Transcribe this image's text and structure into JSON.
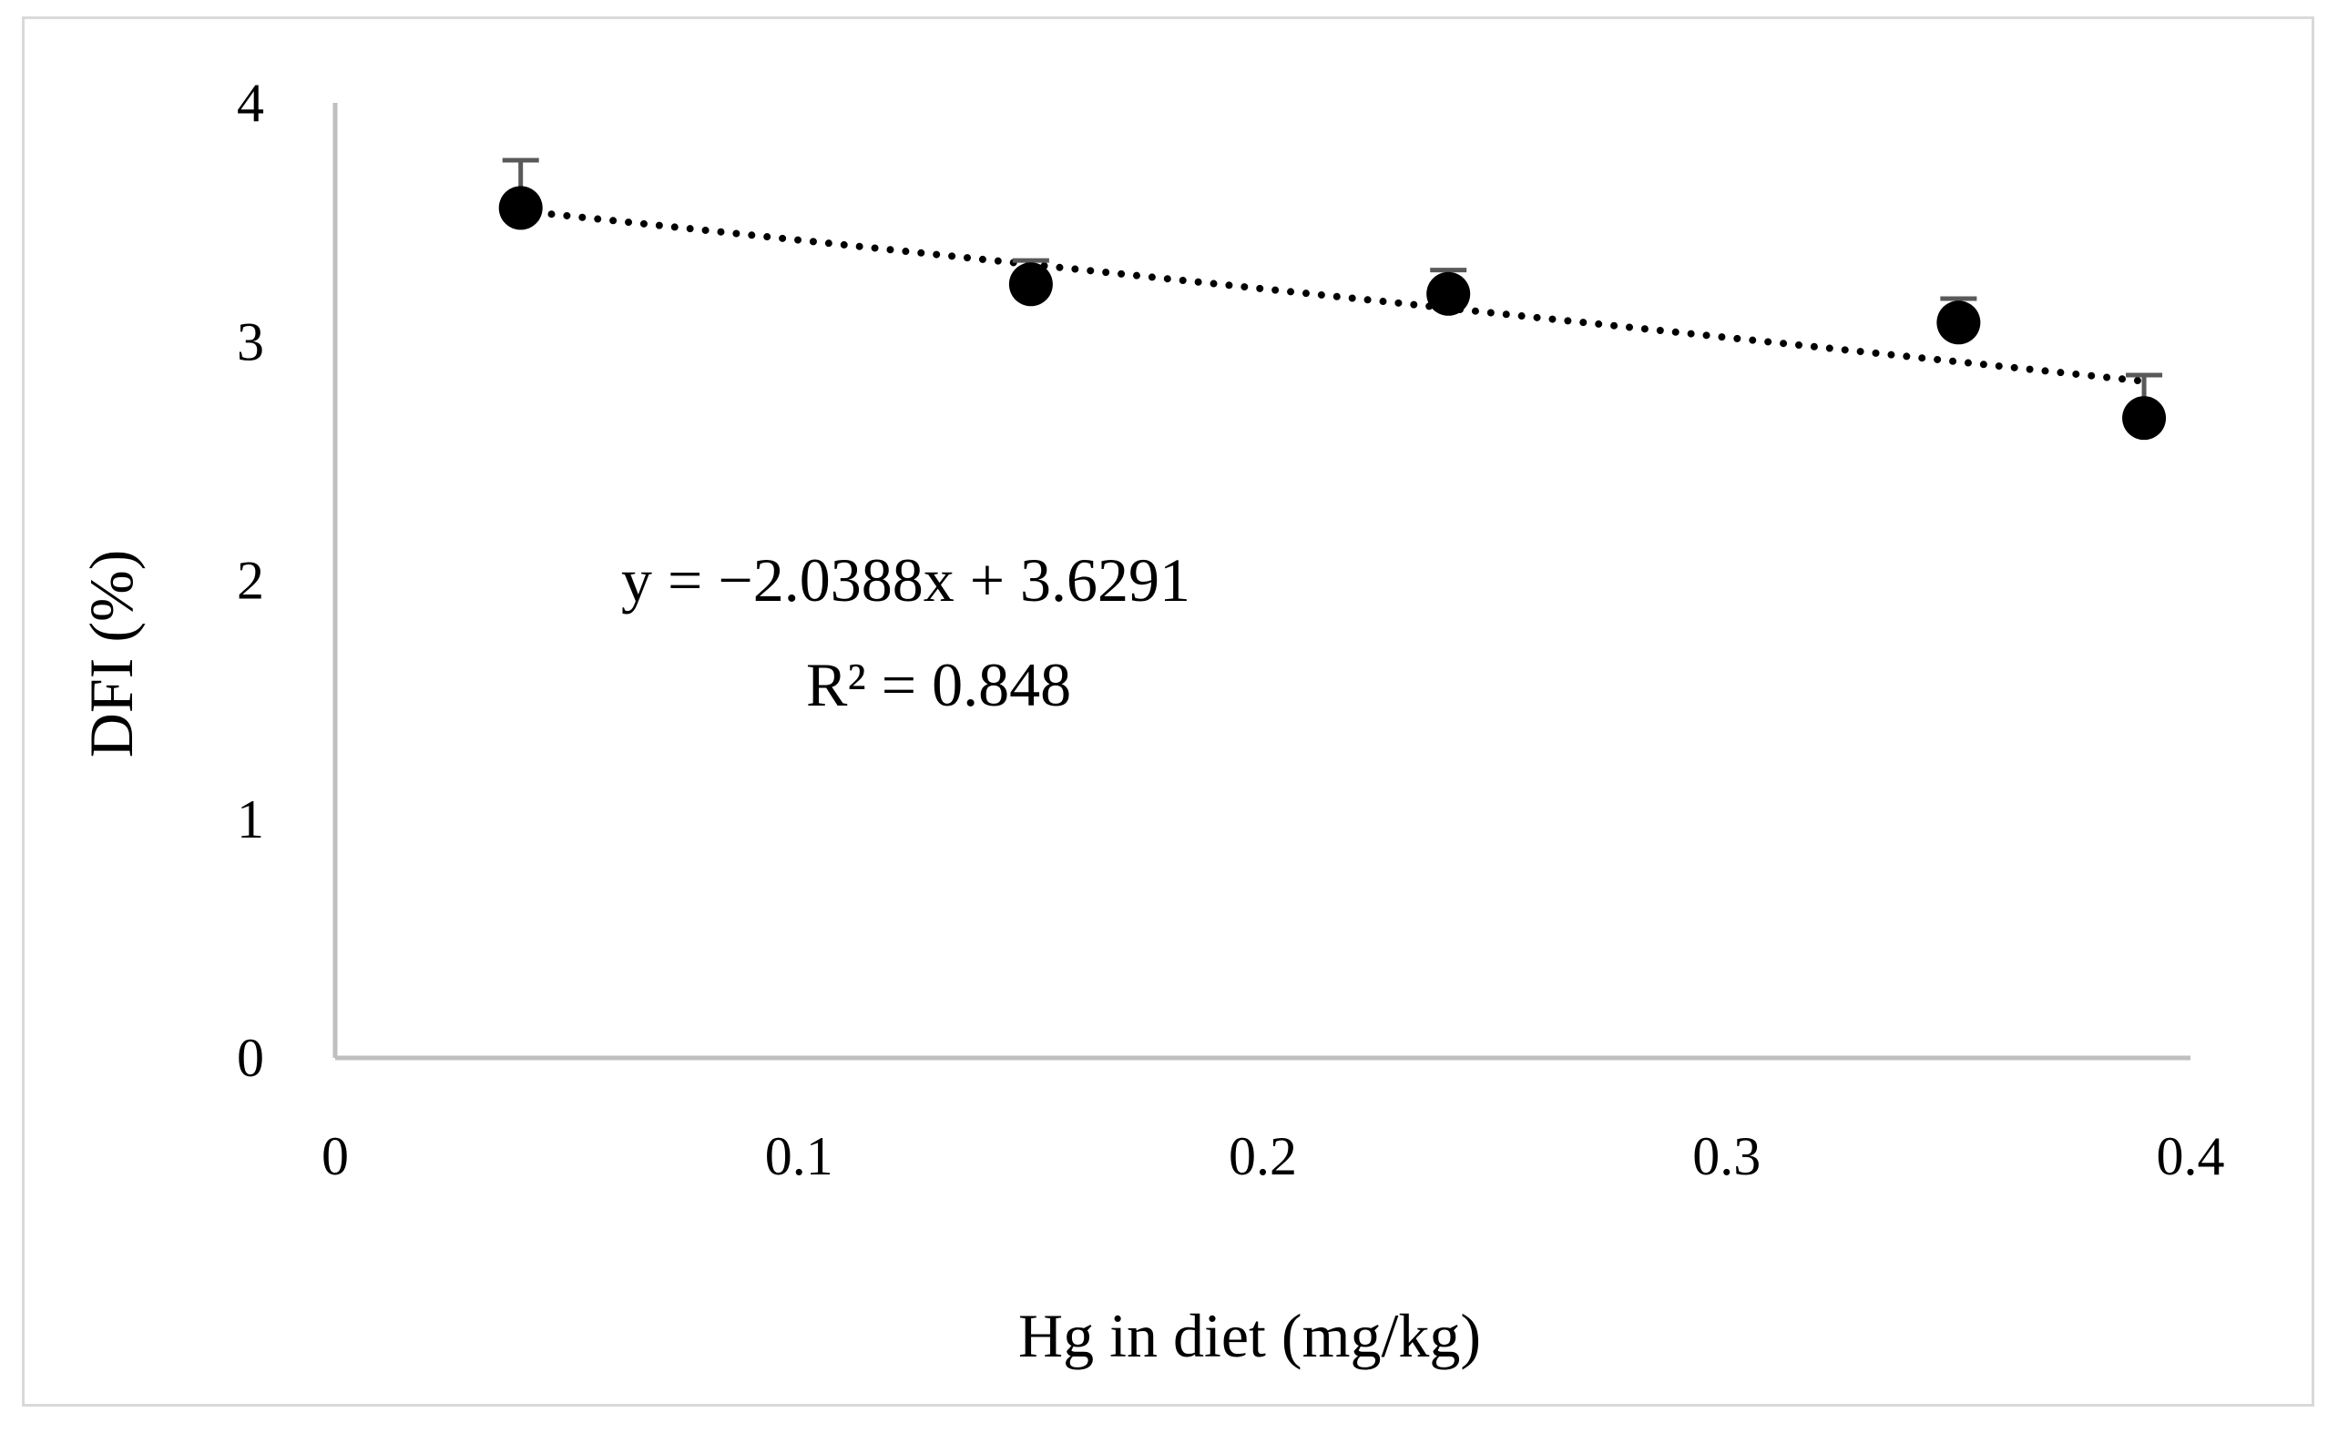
{
  "chart_data": {
    "type": "scatter",
    "title": "",
    "xlabel": "Hg in diet (mg/kg)",
    "ylabel": "DFI (%)",
    "xlim": [
      0,
      0.4
    ],
    "ylim": [
      0,
      4
    ],
    "xticks": [
      0,
      0.1,
      0.2,
      0.3,
      0.4
    ],
    "xtick_labels": [
      "0",
      "0.1",
      "0.2",
      "0.3",
      "0.4"
    ],
    "yticks": [
      0,
      1,
      2,
      3,
      4
    ],
    "ytick_labels": [
      "0",
      "1",
      "2",
      "3",
      "4"
    ],
    "grid": false,
    "series": [
      {
        "name": "DFI",
        "x": [
          0.04,
          0.15,
          0.24,
          0.35,
          0.39
        ],
        "y": [
          3.56,
          3.24,
          3.2,
          3.08,
          2.68
        ],
        "error_upper": [
          0.2,
          0.1,
          0.1,
          0.1,
          0.18
        ]
      }
    ],
    "trendline": {
      "type": "linear",
      "slope": -2.0388,
      "intercept": 3.6291,
      "x_range": [
        0.04,
        0.39
      ]
    },
    "annotations": {
      "equation": "y = −2.0388x + 3.6291",
      "r_squared": "R² = 0.848"
    },
    "colors": {
      "axis": "#bfbfbf",
      "marker": "#000000",
      "error_bar": "#595959",
      "trendline": "#000000"
    }
  }
}
